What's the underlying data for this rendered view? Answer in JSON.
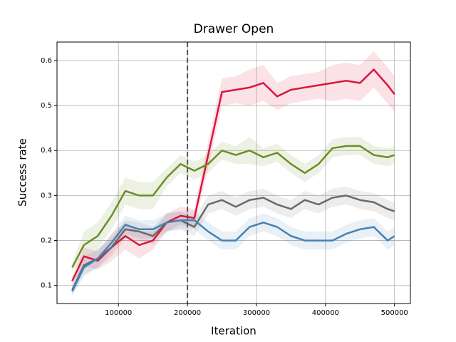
{
  "chart_data": {
    "type": "line",
    "title": "Drawer Open",
    "x_label": "Iteration",
    "y_label": "Success rate",
    "x": [
      33000,
      50000,
      70000,
      90000,
      110000,
      130000,
      150000,
      170000,
      190000,
      210000,
      230000,
      250000,
      270000,
      290000,
      310000,
      330000,
      350000,
      370000,
      390000,
      410000,
      430000,
      450000,
      470000,
      490000,
      500000
    ],
    "series": [
      {
        "color": "#dc143c",
        "values": [
          0.11,
          0.165,
          0.155,
          0.185,
          0.21,
          0.19,
          0.2,
          0.24,
          0.255,
          0.25,
          0.39,
          0.53,
          0.535,
          0.54,
          0.55,
          0.52,
          0.535,
          0.54,
          0.545,
          0.55,
          0.555,
          0.55,
          0.58,
          0.545,
          0.525
        ],
        "errors": [
          0.01,
          0.02,
          0.02,
          0.03,
          0.03,
          0.03,
          0.02,
          0.02,
          0.02,
          0.02,
          0.03,
          0.03,
          0.03,
          0.04,
          0.04,
          0.03,
          0.03,
          0.03,
          0.03,
          0.04,
          0.04,
          0.04,
          0.04,
          0.04,
          0.04
        ]
      },
      {
        "color": "#6b8e23",
        "values": [
          0.14,
          0.19,
          0.21,
          0.255,
          0.31,
          0.3,
          0.3,
          0.34,
          0.37,
          0.355,
          0.37,
          0.4,
          0.39,
          0.4,
          0.385,
          0.395,
          0.37,
          0.35,
          0.37,
          0.405,
          0.41,
          0.41,
          0.39,
          0.385,
          0.39
        ],
        "errors": [
          0.01,
          0.03,
          0.03,
          0.03,
          0.03,
          0.03,
          0.03,
          0.02,
          0.02,
          0.02,
          0.02,
          0.02,
          0.02,
          0.03,
          0.02,
          0.02,
          0.02,
          0.02,
          0.02,
          0.02,
          0.02,
          0.02,
          0.02,
          0.02,
          0.02
        ]
      },
      {
        "color": "#696969",
        "values": [
          0.09,
          0.145,
          0.16,
          0.185,
          0.225,
          0.22,
          0.21,
          0.24,
          0.245,
          0.23,
          0.28,
          0.29,
          0.275,
          0.29,
          0.295,
          0.28,
          0.27,
          0.29,
          0.28,
          0.295,
          0.3,
          0.29,
          0.285,
          0.27,
          0.265
        ],
        "errors": [
          0.01,
          0.02,
          0.02,
          0.02,
          0.02,
          0.02,
          0.02,
          0.02,
          0.02,
          0.02,
          0.02,
          0.02,
          0.02,
          0.02,
          0.02,
          0.02,
          0.02,
          0.02,
          0.02,
          0.02,
          0.02,
          0.02,
          0.02,
          0.02,
          0.02
        ]
      },
      {
        "color": "#4682b4",
        "values": [
          0.087,
          0.14,
          0.16,
          0.195,
          0.235,
          0.225,
          0.225,
          0.24,
          0.245,
          0.245,
          0.22,
          0.2,
          0.2,
          0.23,
          0.24,
          0.23,
          0.21,
          0.2,
          0.2,
          0.2,
          0.215,
          0.225,
          0.23,
          0.2,
          0.21
        ],
        "errors": [
          0.01,
          0.02,
          0.02,
          0.02,
          0.02,
          0.02,
          0.02,
          0.02,
          0.02,
          0.02,
          0.02,
          0.02,
          0.02,
          0.02,
          0.02,
          0.02,
          0.02,
          0.02,
          0.02,
          0.02,
          0.02,
          0.02,
          0.02,
          0.02,
          0.02
        ]
      }
    ],
    "vline": 200000,
    "xlim": [
      11000,
      523000
    ],
    "ylim": [
      0.06,
      0.641
    ],
    "xticks": [
      100000,
      200000,
      300000,
      400000,
      500000
    ],
    "yticks": [
      0.1,
      0.2,
      0.3,
      0.4,
      0.5,
      0.6
    ],
    "grid": true
  }
}
